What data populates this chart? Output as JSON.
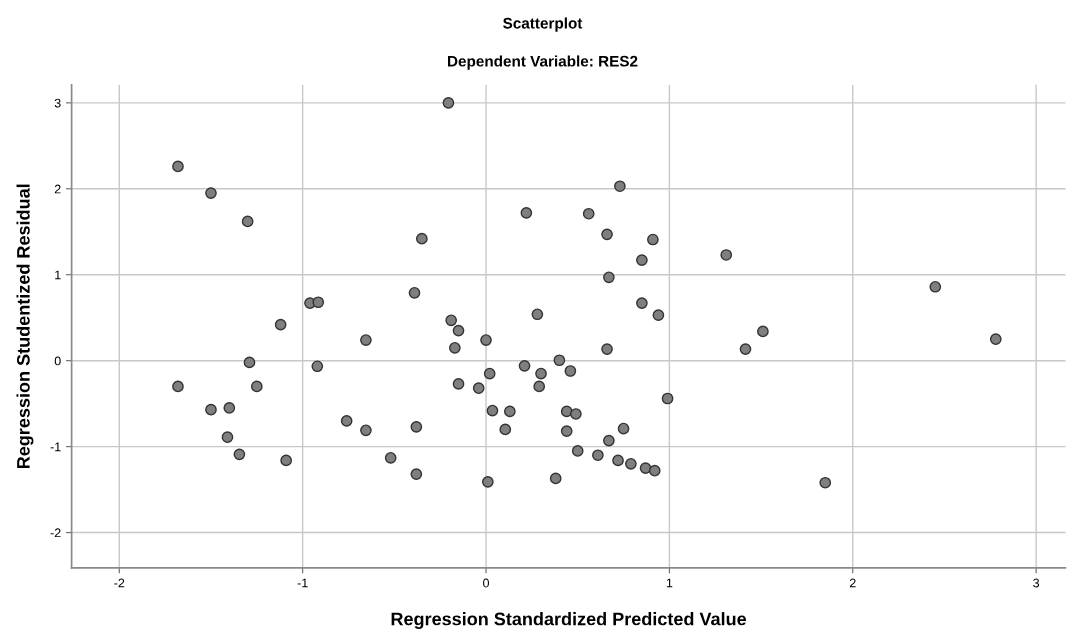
{
  "chart_data": {
    "type": "scatter",
    "title": "Scatterplot",
    "subtitle": "Dependent Variable: RES2",
    "xlabel": "Regression Standardized Predicted Value",
    "ylabel": "Regression Studentized Residual",
    "xlim": [
      -2.26,
      3.16
    ],
    "ylim": [
      -2.41,
      3.21
    ],
    "xticks": [
      -2,
      -1,
      0,
      1,
      2,
      3
    ],
    "yticks": [
      -2,
      -1,
      0,
      1,
      2,
      3
    ],
    "grid": true,
    "marker": "circle",
    "series": [
      {
        "color": "#7f7f7f",
        "x": [
          -1.68,
          -1.5,
          -1.3,
          -0.205,
          -0.35,
          -0.39,
          -0.96,
          -0.915,
          -1.12,
          -0.19,
          -0.15,
          -0.655,
          -0.17,
          0.0,
          -1.29,
          -0.92,
          -1.68,
          -1.25,
          -0.15,
          -0.04,
          0.02,
          0.035,
          -1.5,
          -1.4,
          -0.76,
          -0.655,
          -0.38,
          -1.41,
          -1.345,
          -1.09,
          -0.52,
          -0.38,
          0.01,
          0.66,
          1.415,
          1.51,
          2.78,
          0.21,
          0.3,
          0.29,
          0.4,
          0.46,
          0.99,
          0.13,
          0.44,
          0.49,
          0.105,
          0.44,
          0.75,
          0.67,
          0.5,
          0.61,
          0.72,
          0.79,
          0.87,
          0.92,
          0.38,
          1.85,
          0.73,
          0.22,
          0.56,
          0.66,
          0.91,
          0.85,
          1.31,
          0.67,
          2.45,
          0.28,
          0.85,
          0.94
        ],
        "values": [
          2.26,
          1.95,
          1.62,
          3.0,
          1.42,
          0.79,
          0.67,
          0.68,
          0.42,
          0.47,
          0.35,
          0.24,
          0.15,
          0.24,
          -0.02,
          -0.065,
          -0.3,
          -0.3,
          -0.27,
          -0.32,
          -0.15,
          -0.58,
          -0.57,
          -0.55,
          -0.7,
          -0.81,
          -0.77,
          -0.89,
          -1.09,
          -1.16,
          -1.13,
          -1.32,
          -1.41,
          0.135,
          0.135,
          0.34,
          0.25,
          -0.06,
          -0.15,
          -0.3,
          0.005,
          -0.12,
          -0.44,
          -0.59,
          -0.59,
          -0.62,
          -0.8,
          -0.82,
          -0.79,
          -0.93,
          -1.05,
          -1.1,
          -1.16,
          -1.2,
          -1.25,
          -1.28,
          -1.37,
          -1.42,
          2.03,
          1.72,
          1.71,
          1.47,
          1.41,
          1.17,
          1.23,
          0.97,
          0.86,
          0.54,
          0.67,
          0.53
        ]
      }
    ]
  }
}
